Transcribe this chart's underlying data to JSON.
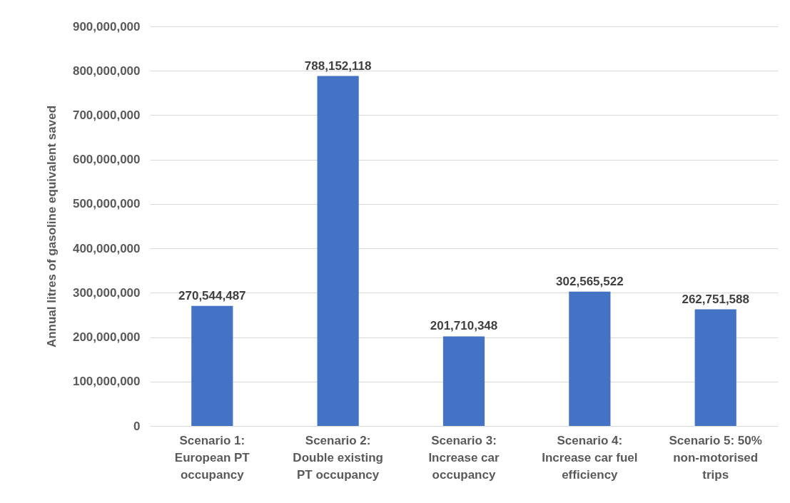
{
  "chart_data": {
    "type": "bar",
    "ylabel": "Annual litres of gasoline equivalent saved",
    "categories": [
      "Scenario 1: European PT occupancy",
      "Scenario 2: Double existing PT occupancy",
      "Scenario 3: Increase car occupancy",
      "Scenario 4: Increase car fuel efficiency",
      "Scenario 5: 50% non-motorised trips"
    ],
    "values": [
      270544487,
      788152118,
      201710348,
      302565522,
      262751588
    ],
    "value_labels": [
      "270,544,487",
      "788,152,118",
      "201,710,348",
      "302,565,522",
      "262,751,588"
    ],
    "color": "#4472c4",
    "ylim": [
      0,
      900000000
    ],
    "yticks": [
      0,
      {
        "value": 100000000,
        "label": "100,000,000"
      },
      {
        "value": 200000000,
        "label": "200,000,000"
      },
      {
        "value": 300000000,
        "label": "300,000,000"
      },
      {
        "value": 400000000,
        "label": "400,000,000"
      },
      {
        "value": 500000000,
        "label": "500,000,000"
      },
      {
        "value": 600000000,
        "label": "600,000,000"
      },
      {
        "value": 700000000,
        "label": "700,000,000"
      },
      {
        "value": 800000000,
        "label": "800,000,000"
      },
      {
        "value": 900000000,
        "label": "900,000,000"
      }
    ],
    "grid": "y"
  }
}
